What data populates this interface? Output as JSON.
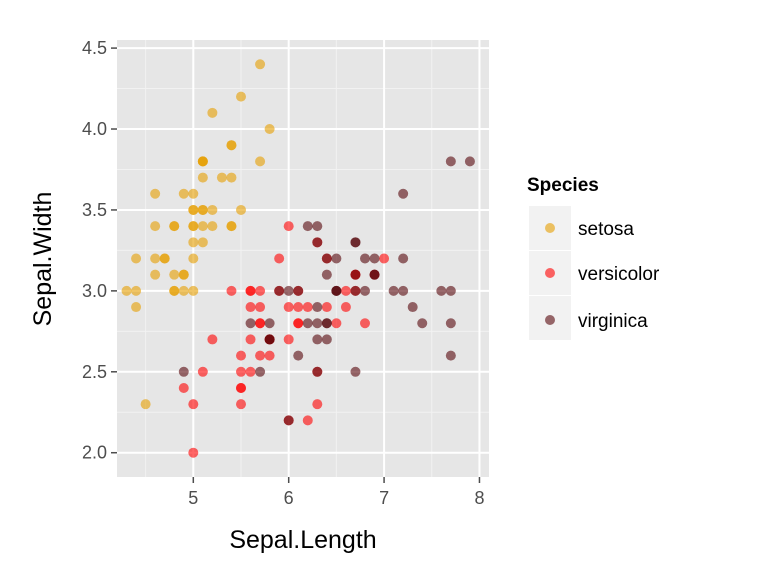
{
  "chart_data": {
    "type": "scatter",
    "title": "",
    "xlabel": "Sepal.Length",
    "ylabel": "Sepal.Width",
    "xlim": [
      4.2,
      8.1
    ],
    "ylim": [
      1.85,
      4.55
    ],
    "xticks": [
      5,
      6,
      7,
      8
    ],
    "yticks": [
      2.0,
      2.5,
      3.0,
      3.5,
      4.0,
      4.5
    ],
    "xtick_labels": [
      "5",
      "6",
      "7",
      "8"
    ],
    "ytick_labels": [
      "2.0",
      "2.5",
      "3.0",
      "3.5",
      "4.0",
      "4.5"
    ],
    "grid": true,
    "legend": {
      "title": "Species",
      "placement": "right"
    },
    "series": [
      {
        "name": "setosa",
        "color": "#E69F00",
        "x": [
          5.1,
          4.9,
          4.7,
          4.6,
          5.0,
          5.4,
          4.6,
          5.0,
          4.4,
          4.9,
          5.4,
          4.8,
          4.8,
          4.3,
          5.8,
          5.7,
          5.4,
          5.1,
          5.7,
          5.1,
          5.4,
          5.1,
          4.6,
          5.1,
          4.8,
          5.0,
          5.0,
          5.2,
          5.2,
          4.7,
          4.8,
          5.4,
          5.2,
          5.5,
          4.9,
          5.0,
          5.5,
          4.9,
          4.4,
          5.1,
          5.0,
          4.5,
          4.4,
          5.0,
          5.1,
          4.8,
          5.1,
          4.6,
          5.3,
          5.0
        ],
        "y": [
          3.5,
          3.0,
          3.2,
          3.1,
          3.6,
          3.9,
          3.4,
          3.4,
          2.9,
          3.1,
          3.7,
          3.4,
          3.0,
          3.0,
          4.0,
          4.4,
          3.9,
          3.5,
          3.8,
          3.8,
          3.4,
          3.7,
          3.6,
          3.3,
          3.4,
          3.0,
          3.4,
          3.5,
          3.4,
          3.2,
          3.1,
          3.4,
          4.1,
          4.2,
          3.1,
          3.2,
          3.5,
          3.6,
          3.0,
          3.4,
          3.5,
          2.3,
          3.2,
          3.5,
          3.8,
          3.0,
          3.8,
          3.2,
          3.7,
          3.3
        ]
      },
      {
        "name": "versicolor",
        "color": "#FF0000",
        "x": [
          7.0,
          6.4,
          6.9,
          5.5,
          6.5,
          5.7,
          6.3,
          4.9,
          6.6,
          5.2,
          5.0,
          5.9,
          6.0,
          6.1,
          5.6,
          6.7,
          5.6,
          5.8,
          6.2,
          5.6,
          5.9,
          6.1,
          6.3,
          6.1,
          6.4,
          6.6,
          6.8,
          6.7,
          6.0,
          5.7,
          5.5,
          5.5,
          5.8,
          6.0,
          5.4,
          6.0,
          6.7,
          6.3,
          5.6,
          5.5,
          5.5,
          6.1,
          5.8,
          5.0,
          5.6,
          5.7,
          5.7,
          6.2,
          5.1,
          5.7
        ],
        "y": [
          3.2,
          3.2,
          3.1,
          2.3,
          2.8,
          2.8,
          3.3,
          2.4,
          2.9,
          2.7,
          2.0,
          3.0,
          2.2,
          2.9,
          2.9,
          3.1,
          3.0,
          2.7,
          2.2,
          2.5,
          3.2,
          2.8,
          2.5,
          2.8,
          2.9,
          3.0,
          2.8,
          3.0,
          2.9,
          2.6,
          2.4,
          2.4,
          2.7,
          2.7,
          3.0,
          3.4,
          3.1,
          2.3,
          3.0,
          2.5,
          2.6,
          3.0,
          2.6,
          2.3,
          2.7,
          3.0,
          2.9,
          2.9,
          2.5,
          2.8
        ]
      },
      {
        "name": "virginica",
        "color": "#56070C",
        "x": [
          6.3,
          5.8,
          7.1,
          6.3,
          6.5,
          7.6,
          4.9,
          7.3,
          6.7,
          7.2,
          6.5,
          6.4,
          6.8,
          5.7,
          5.8,
          6.4,
          6.5,
          7.7,
          7.7,
          6.0,
          6.9,
          5.6,
          7.7,
          6.3,
          6.7,
          7.2,
          6.2,
          6.1,
          6.4,
          7.2,
          7.4,
          7.9,
          6.4,
          6.3,
          6.1,
          7.7,
          6.3,
          6.4,
          6.0,
          6.9,
          6.7,
          6.9,
          5.8,
          6.8,
          6.7,
          6.7,
          6.3,
          6.5,
          6.2,
          5.9
        ],
        "y": [
          3.3,
          2.7,
          3.0,
          2.9,
          3.0,
          3.0,
          2.5,
          2.9,
          2.5,
          3.6,
          3.2,
          2.7,
          3.0,
          2.5,
          2.8,
          3.2,
          3.0,
          3.8,
          2.6,
          2.2,
          3.2,
          2.8,
          2.8,
          2.7,
          3.3,
          3.2,
          2.8,
          3.0,
          2.8,
          3.0,
          2.8,
          3.8,
          2.8,
          2.8,
          2.6,
          3.0,
          3.4,
          3.1,
          3.0,
          3.1,
          3.1,
          3.1,
          2.7,
          3.2,
          3.3,
          3.0,
          2.5,
          3.0,
          3.4,
          3.0
        ]
      }
    ]
  }
}
